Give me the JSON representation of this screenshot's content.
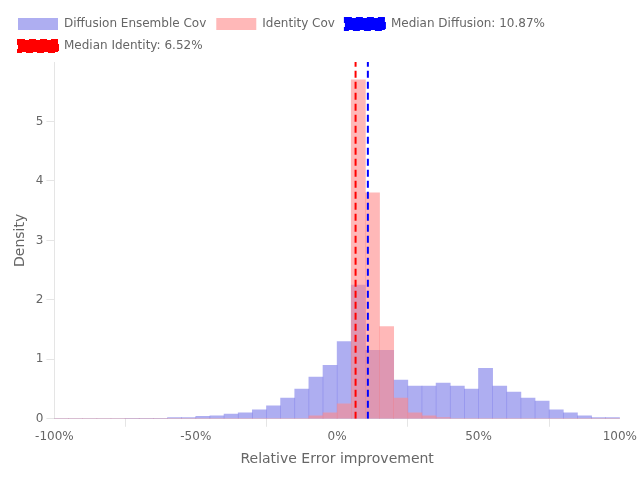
{
  "chart_data": {
    "type": "histogram",
    "xlabel": "Relative Error improvement",
    "ylabel": "Density",
    "bins": [
      -1.0,
      -0.95,
      -0.9,
      -0.85,
      -0.8,
      -0.75,
      -0.7,
      -0.65,
      -0.6,
      -0.55,
      -0.5,
      -0.45,
      -0.4,
      -0.35,
      -0.3,
      -0.25,
      -0.2,
      -0.15,
      -0.1,
      -0.05,
      0.0,
      0.05,
      0.1,
      0.15,
      0.2,
      0.25,
      0.3,
      0.35,
      0.4,
      0.45,
      0.5,
      0.55,
      0.6,
      0.65,
      0.7,
      0.75,
      0.8,
      0.85,
      0.9,
      0.95,
      1.0
    ],
    "series": [
      {
        "name": "Diffusion Ensemble Cov",
        "color": "#7878e8",
        "values": [
          0.0,
          0.0,
          0.0,
          0.0,
          0.0,
          0.01,
          0.01,
          0.01,
          0.02,
          0.02,
          0.04,
          0.05,
          0.08,
          0.1,
          0.15,
          0.22,
          0.35,
          0.5,
          0.7,
          0.9,
          1.3,
          2.25,
          1.15,
          1.15,
          0.65,
          0.55,
          0.55,
          0.6,
          0.55,
          0.5,
          0.85,
          0.55,
          0.45,
          0.35,
          0.3,
          0.15,
          0.1,
          0.05,
          0.02,
          0.02
        ]
      },
      {
        "name": "Identity Cov",
        "color": "#ff8888",
        "values": [
          0.0,
          0.0,
          0.0,
          0.0,
          0.0,
          0.0,
          0.0,
          0.0,
          0.0,
          0.0,
          0.0,
          0.0,
          0.0,
          0.0,
          0.0,
          0.0,
          0.0,
          0.0,
          0.05,
          0.1,
          0.25,
          5.7,
          3.8,
          1.55,
          0.35,
          0.1,
          0.05,
          0.02,
          0.0,
          0.0,
          0.0,
          0.0,
          0.0,
          0.0,
          0.0,
          0.0,
          0.0,
          0.0,
          0.0,
          0.0
        ]
      },
      {
        "name": "Median Diffusion: 10.87%",
        "type": "vline",
        "color": "blue",
        "line_style": "dashed",
        "values": [
          0.1087
        ]
      },
      {
        "name": "Median Identity: 6.52%",
        "type": "vline",
        "color": "red",
        "line_style": "dashed",
        "values": [
          0.0652
        ]
      }
    ],
    "xlim": [
      -1.0,
      1.0
    ],
    "ylim": [
      0,
      6.0
    ],
    "xticks": [
      {
        "value": -1.0,
        "label": "-100%"
      },
      {
        "value": -0.5,
        "label": "-50%"
      },
      {
        "value": 0.0,
        "label": "0%"
      },
      {
        "value": 0.5,
        "label": "50%"
      },
      {
        "value": 1.0,
        "label": "100%"
      }
    ],
    "yticks": [
      0,
      1,
      2,
      3,
      4,
      5
    ],
    "grid": false,
    "legend": "upper left"
  }
}
